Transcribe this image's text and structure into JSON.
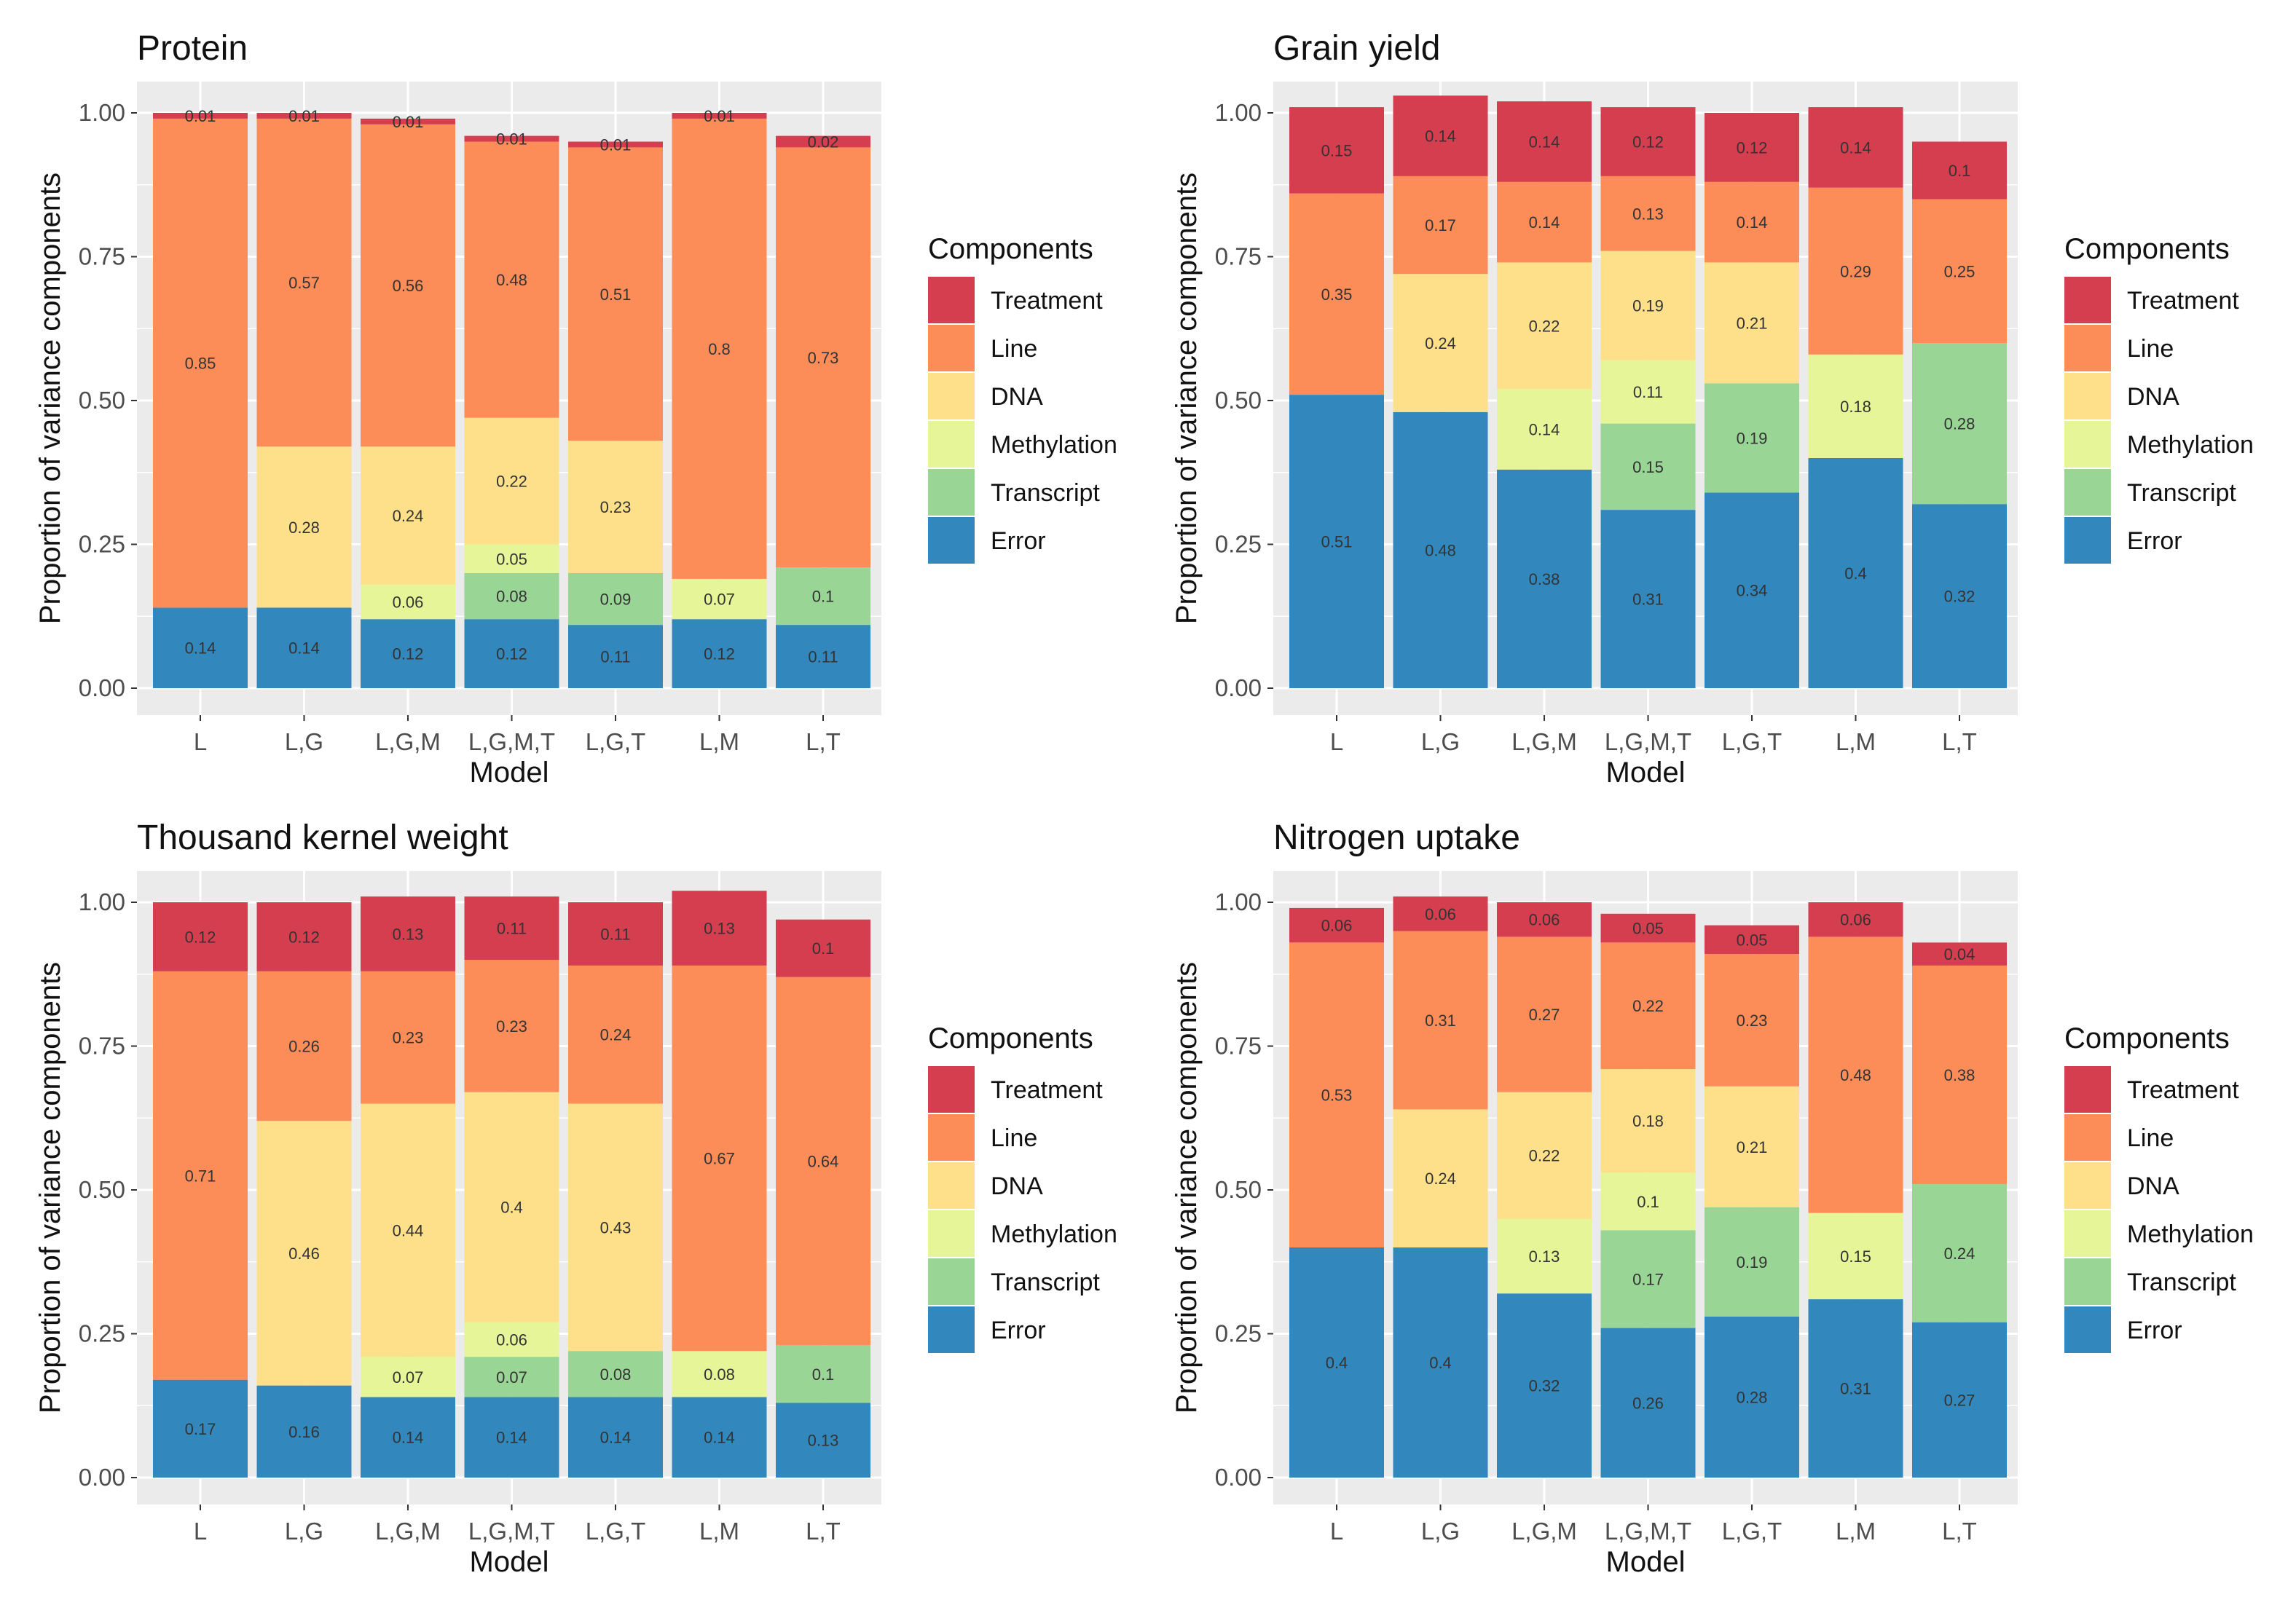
{
  "components_order": [
    "Error",
    "Transcript",
    "Methylation",
    "DNA",
    "Line",
    "Treatment"
  ],
  "component_colors": {
    "Treatment": "#d53e4f",
    "Line": "#fc8d59",
    "DNA": "#fee08b",
    "Methylation": "#e6f598",
    "Transcript": "#99d594",
    "Error": "#3288bd"
  },
  "legend": {
    "title": "Components",
    "items": [
      "Treatment",
      "Line",
      "DNA",
      "Methylation",
      "Transcript",
      "Error"
    ]
  },
  "chart_data": [
    {
      "type": "bar",
      "stacked": true,
      "title": "Protein",
      "xlabel": "Model",
      "ylabel": "Proportion of variance components",
      "ylim": [
        0,
        1
      ],
      "yticks": [
        "0.00",
        "0.25",
        "0.50",
        "0.75",
        "1.00"
      ],
      "categories": [
        "L",
        "L,G",
        "L,G,M",
        "L,G,M,T",
        "L,G,T",
        "L,M",
        "L,T"
      ],
      "segments": [
        [
          {
            "c": "Error",
            "v": 0.14,
            "l": "0.14"
          },
          {
            "c": "Line",
            "v": 0.85,
            "l": "0.85"
          },
          {
            "c": "Treatment",
            "v": 0.01,
            "l": "0.01"
          }
        ],
        [
          {
            "c": "Error",
            "v": 0.14,
            "l": "0.14"
          },
          {
            "c": "DNA",
            "v": 0.28,
            "l": "0.28"
          },
          {
            "c": "Line",
            "v": 0.57,
            "l": "0.57"
          },
          {
            "c": "Treatment",
            "v": 0.01,
            "l": "0.01"
          }
        ],
        [
          {
            "c": "Error",
            "v": 0.12,
            "l": "0.12"
          },
          {
            "c": "Methylation",
            "v": 0.06,
            "l": "0.06"
          },
          {
            "c": "DNA",
            "v": 0.24,
            "l": "0.24"
          },
          {
            "c": "Line",
            "v": 0.56,
            "l": "0.56"
          },
          {
            "c": "Treatment",
            "v": 0.01,
            "l": "0.01"
          }
        ],
        [
          {
            "c": "Error",
            "v": 0.12,
            "l": "0.12"
          },
          {
            "c": "Transcript",
            "v": 0.08,
            "l": "0.08"
          },
          {
            "c": "Methylation",
            "v": 0.05,
            "l": "0.05"
          },
          {
            "c": "DNA",
            "v": 0.22,
            "l": "0.22"
          },
          {
            "c": "Line",
            "v": 0.48,
            "l": "0.48"
          },
          {
            "c": "Treatment",
            "v": 0.01,
            "l": "0.01"
          }
        ],
        [
          {
            "c": "Error",
            "v": 0.11,
            "l": "0.11"
          },
          {
            "c": "Transcript",
            "v": 0.09,
            "l": "0.09"
          },
          {
            "c": "DNA",
            "v": 0.23,
            "l": "0.23"
          },
          {
            "c": "Line",
            "v": 0.51,
            "l": "0.51"
          },
          {
            "c": "Treatment",
            "v": 0.01,
            "l": "0.01"
          }
        ],
        [
          {
            "c": "Error",
            "v": 0.12,
            "l": "0.12"
          },
          {
            "c": "Methylation",
            "v": 0.07,
            "l": "0.07"
          },
          {
            "c": "Line",
            "v": 0.8,
            "l": "0.8"
          },
          {
            "c": "Treatment",
            "v": 0.01,
            "l": "0.01"
          }
        ],
        [
          {
            "c": "Error",
            "v": 0.11,
            "l": "0.11"
          },
          {
            "c": "Transcript",
            "v": 0.1,
            "l": "0.1"
          },
          {
            "c": "Line",
            "v": 0.73,
            "l": "0.73"
          },
          {
            "c": "Treatment",
            "v": 0.02,
            "l": "0.02"
          }
        ]
      ]
    },
    {
      "type": "bar",
      "stacked": true,
      "title": "Grain yield",
      "xlabel": "Model",
      "ylabel": "Proportion of variance components",
      "ylim": [
        0,
        1
      ],
      "yticks": [
        "0.00",
        "0.25",
        "0.50",
        "0.75",
        "1.00"
      ],
      "categories": [
        "L",
        "L,G",
        "L,G,M",
        "L,G,M,T",
        "L,G,T",
        "L,M",
        "L,T"
      ],
      "segments": [
        [
          {
            "c": "Error",
            "v": 0.51,
            "l": "0.51"
          },
          {
            "c": "Line",
            "v": 0.35,
            "l": "0.35"
          },
          {
            "c": "Treatment",
            "v": 0.15,
            "l": "0.15"
          }
        ],
        [
          {
            "c": "Error",
            "v": 0.48,
            "l": "0.48"
          },
          {
            "c": "DNA",
            "v": 0.24,
            "l": "0.24"
          },
          {
            "c": "Line",
            "v": 0.17,
            "l": "0.17"
          },
          {
            "c": "Treatment",
            "v": 0.14,
            "l": "0.14"
          }
        ],
        [
          {
            "c": "Error",
            "v": 0.38,
            "l": "0.38"
          },
          {
            "c": "Methylation",
            "v": 0.14,
            "l": "0.14"
          },
          {
            "c": "DNA",
            "v": 0.22,
            "l": "0.22"
          },
          {
            "c": "Line",
            "v": 0.14,
            "l": "0.14"
          },
          {
            "c": "Treatment",
            "v": 0.14,
            "l": "0.14"
          }
        ],
        [
          {
            "c": "Error",
            "v": 0.31,
            "l": "0.31"
          },
          {
            "c": "Transcript",
            "v": 0.15,
            "l": "0.15"
          },
          {
            "c": "Methylation",
            "v": 0.11,
            "l": "0.11"
          },
          {
            "c": "DNA",
            "v": 0.19,
            "l": "0.19"
          },
          {
            "c": "Line",
            "v": 0.13,
            "l": "0.13"
          },
          {
            "c": "Treatment",
            "v": 0.12,
            "l": "0.12"
          }
        ],
        [
          {
            "c": "Error",
            "v": 0.34,
            "l": "0.34"
          },
          {
            "c": "Transcript",
            "v": 0.19,
            "l": "0.19"
          },
          {
            "c": "DNA",
            "v": 0.21,
            "l": "0.21"
          },
          {
            "c": "Line",
            "v": 0.14,
            "l": "0.14"
          },
          {
            "c": "Treatment",
            "v": 0.12,
            "l": "0.12"
          }
        ],
        [
          {
            "c": "Error",
            "v": 0.4,
            "l": "0.4"
          },
          {
            "c": "Methylation",
            "v": 0.18,
            "l": "0.18"
          },
          {
            "c": "Line",
            "v": 0.29,
            "l": "0.29"
          },
          {
            "c": "Treatment",
            "v": 0.14,
            "l": "0.14"
          }
        ],
        [
          {
            "c": "Error",
            "v": 0.32,
            "l": "0.32"
          },
          {
            "c": "Transcript",
            "v": 0.28,
            "l": "0.28"
          },
          {
            "c": "Line",
            "v": 0.25,
            "l": "0.25"
          },
          {
            "c": "Treatment",
            "v": 0.1,
            "l": "0.1"
          }
        ]
      ]
    },
    {
      "type": "bar",
      "stacked": true,
      "title": "Thousand kernel weight",
      "xlabel": "Model",
      "ylabel": "Proportion of variance components",
      "ylim": [
        0,
        1
      ],
      "yticks": [
        "0.00",
        "0.25",
        "0.50",
        "0.75",
        "1.00"
      ],
      "categories": [
        "L",
        "L,G",
        "L,G,M",
        "L,G,M,T",
        "L,G,T",
        "L,M",
        "L,T"
      ],
      "segments": [
        [
          {
            "c": "Error",
            "v": 0.17,
            "l": "0.17"
          },
          {
            "c": "Line",
            "v": 0.71,
            "l": "0.71"
          },
          {
            "c": "Treatment",
            "v": 0.12,
            "l": "0.12"
          }
        ],
        [
          {
            "c": "Error",
            "v": 0.16,
            "l": "0.16"
          },
          {
            "c": "DNA",
            "v": 0.46,
            "l": "0.46"
          },
          {
            "c": "Line",
            "v": 0.26,
            "l": "0.26"
          },
          {
            "c": "Treatment",
            "v": 0.12,
            "l": "0.12"
          }
        ],
        [
          {
            "c": "Error",
            "v": 0.14,
            "l": "0.14"
          },
          {
            "c": "Methylation",
            "v": 0.07,
            "l": "0.07"
          },
          {
            "c": "DNA",
            "v": 0.44,
            "l": "0.44"
          },
          {
            "c": "Line",
            "v": 0.23,
            "l": "0.23"
          },
          {
            "c": "Treatment",
            "v": 0.13,
            "l": "0.13"
          }
        ],
        [
          {
            "c": "Error",
            "v": 0.14,
            "l": "0.14"
          },
          {
            "c": "Transcript",
            "v": 0.07,
            "l": "0.07"
          },
          {
            "c": "Methylation",
            "v": 0.06,
            "l": "0.06"
          },
          {
            "c": "DNA",
            "v": 0.4,
            "l": "0.4"
          },
          {
            "c": "Line",
            "v": 0.23,
            "l": "0.23"
          },
          {
            "c": "Treatment",
            "v": 0.11,
            "l": "0.11"
          }
        ],
        [
          {
            "c": "Error",
            "v": 0.14,
            "l": "0.14"
          },
          {
            "c": "Transcript",
            "v": 0.08,
            "l": "0.08"
          },
          {
            "c": "DNA",
            "v": 0.43,
            "l": "0.43"
          },
          {
            "c": "Line",
            "v": 0.24,
            "l": "0.24"
          },
          {
            "c": "Treatment",
            "v": 0.11,
            "l": "0.11"
          }
        ],
        [
          {
            "c": "Error",
            "v": 0.14,
            "l": "0.14"
          },
          {
            "c": "Methylation",
            "v": 0.08,
            "l": "0.08"
          },
          {
            "c": "Line",
            "v": 0.67,
            "l": "0.67"
          },
          {
            "c": "Treatment",
            "v": 0.13,
            "l": "0.13"
          }
        ],
        [
          {
            "c": "Error",
            "v": 0.13,
            "l": "0.13"
          },
          {
            "c": "Transcript",
            "v": 0.1,
            "l": "0.1"
          },
          {
            "c": "Line",
            "v": 0.64,
            "l": "0.64"
          },
          {
            "c": "Treatment",
            "v": 0.1,
            "l": "0.1"
          }
        ]
      ]
    },
    {
      "type": "bar",
      "stacked": true,
      "title": "Nitrogen uptake",
      "xlabel": "Model",
      "ylabel": "Proportion of variance components",
      "ylim": [
        0,
        1
      ],
      "yticks": [
        "0.00",
        "0.25",
        "0.50",
        "0.75",
        "1.00"
      ],
      "categories": [
        "L",
        "L,G",
        "L,G,M",
        "L,G,M,T",
        "L,G,T",
        "L,M",
        "L,T"
      ],
      "segments": [
        [
          {
            "c": "Error",
            "v": 0.4,
            "l": "0.4"
          },
          {
            "c": "Line",
            "v": 0.53,
            "l": "0.53"
          },
          {
            "c": "Treatment",
            "v": 0.06,
            "l": "0.06"
          }
        ],
        [
          {
            "c": "Error",
            "v": 0.4,
            "l": "0.4"
          },
          {
            "c": "DNA",
            "v": 0.24,
            "l": "0.24"
          },
          {
            "c": "Line",
            "v": 0.31,
            "l": "0.31"
          },
          {
            "c": "Treatment",
            "v": 0.06,
            "l": "0.06"
          }
        ],
        [
          {
            "c": "Error",
            "v": 0.32,
            "l": "0.32"
          },
          {
            "c": "Methylation",
            "v": 0.13,
            "l": "0.13"
          },
          {
            "c": "DNA",
            "v": 0.22,
            "l": "0.22"
          },
          {
            "c": "Line",
            "v": 0.27,
            "l": "0.27"
          },
          {
            "c": "Treatment",
            "v": 0.06,
            "l": "0.06"
          }
        ],
        [
          {
            "c": "Error",
            "v": 0.26,
            "l": "0.26"
          },
          {
            "c": "Transcript",
            "v": 0.17,
            "l": "0.17"
          },
          {
            "c": "Methylation",
            "v": 0.1,
            "l": "0.1"
          },
          {
            "c": "DNA",
            "v": 0.18,
            "l": "0.18"
          },
          {
            "c": "Line",
            "v": 0.22,
            "l": "0.22"
          },
          {
            "c": "Treatment",
            "v": 0.05,
            "l": "0.05"
          }
        ],
        [
          {
            "c": "Error",
            "v": 0.28,
            "l": "0.28"
          },
          {
            "c": "Transcript",
            "v": 0.19,
            "l": "0.19"
          },
          {
            "c": "DNA",
            "v": 0.21,
            "l": "0.21"
          },
          {
            "c": "Line",
            "v": 0.23,
            "l": "0.23"
          },
          {
            "c": "Treatment",
            "v": 0.05,
            "l": "0.05"
          }
        ],
        [
          {
            "c": "Error",
            "v": 0.31,
            "l": "0.31"
          },
          {
            "c": "Methylation",
            "v": 0.15,
            "l": "0.15"
          },
          {
            "c": "Line",
            "v": 0.48,
            "l": "0.48"
          },
          {
            "c": "Treatment",
            "v": 0.06,
            "l": "0.06"
          }
        ],
        [
          {
            "c": "Error",
            "v": 0.27,
            "l": "0.27"
          },
          {
            "c": "Transcript",
            "v": 0.24,
            "l": "0.24"
          },
          {
            "c": "Line",
            "v": 0.38,
            "l": "0.38"
          },
          {
            "c": "Treatment",
            "v": 0.04,
            "l": "0.04"
          }
        ]
      ]
    }
  ]
}
